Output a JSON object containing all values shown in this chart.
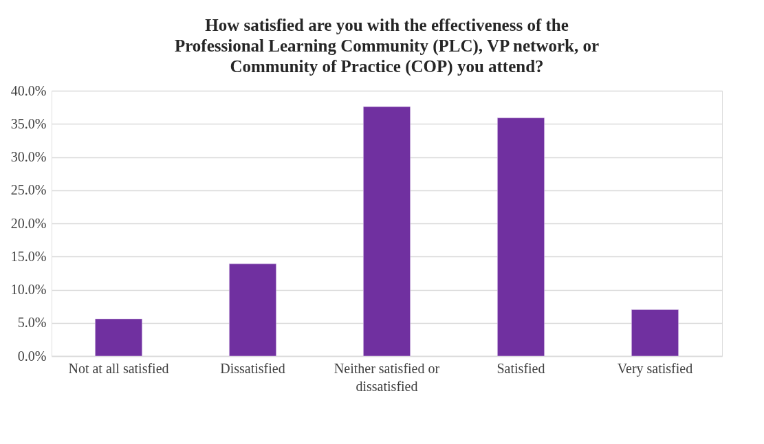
{
  "chart_data": {
    "type": "bar",
    "title": "How satisfied are you with the effectiveness of the Professional Learning Community (PLC), VP network, or Community of Practice (COP) you attend?",
    "categories": [
      "Not at all satisfied",
      "Dissatisfied",
      "Neither satisfied or dissatisfied",
      "Satisfied",
      "Very satisfied"
    ],
    "values": [
      5.6,
      13.9,
      37.6,
      35.9,
      7.0
    ],
    "color": "#7030a0",
    "ylim": [
      0,
      40
    ],
    "yticks": [
      {
        "value": 0,
        "label": "0.0%"
      },
      {
        "value": 5,
        "label": "5.0%"
      },
      {
        "value": 10,
        "label": "10.0%"
      },
      {
        "value": 15,
        "label": "15.0%"
      },
      {
        "value": 20,
        "label": "20.0%"
      },
      {
        "value": 25,
        "label": "25.0%"
      },
      {
        "value": 30,
        "label": "30.0%"
      },
      {
        "value": 35,
        "label": "35.0%"
      },
      {
        "value": 40,
        "label": "40.0%"
      }
    ],
    "grid": "y"
  }
}
